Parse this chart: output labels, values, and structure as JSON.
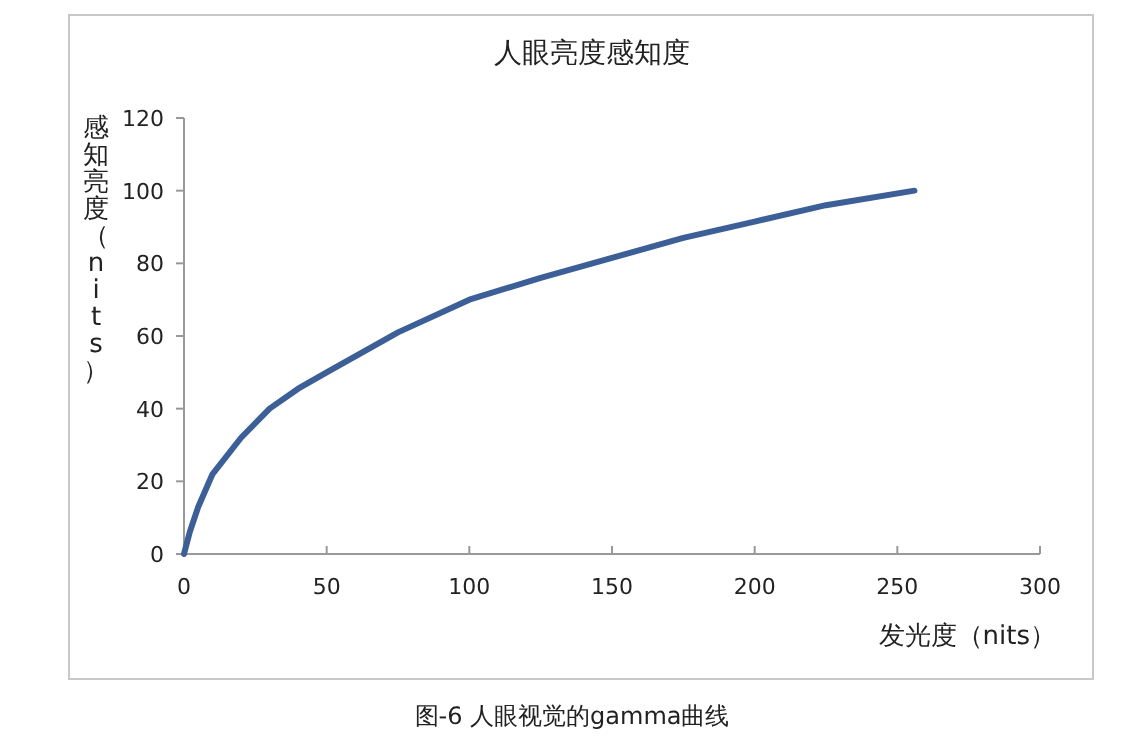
{
  "chart_data": {
    "type": "line",
    "title": "人眼亮度感知度",
    "xlabel": "发光度（nits）",
    "ylabel": "感知亮度（nits）",
    "annotations": [
      "图-6 人眼视觉的gamma曲线"
    ],
    "x": [
      0,
      2,
      5,
      10,
      20,
      30,
      40,
      50,
      75,
      100,
      125,
      150,
      175,
      200,
      225,
      256
    ],
    "values": [
      0,
      6,
      13,
      22,
      32,
      40,
      45.5,
      50,
      61,
      70,
      76,
      81.5,
      87,
      91.5,
      96,
      100
    ],
    "color": "#3c5f97",
    "line_style": "solid",
    "xlim": [
      0,
      300
    ],
    "ylim": [
      0,
      120
    ],
    "xticks": [
      0,
      50,
      100,
      150,
      200,
      250,
      300
    ],
    "yticks": [
      0,
      20,
      40,
      60,
      80,
      100,
      120
    ]
  }
}
